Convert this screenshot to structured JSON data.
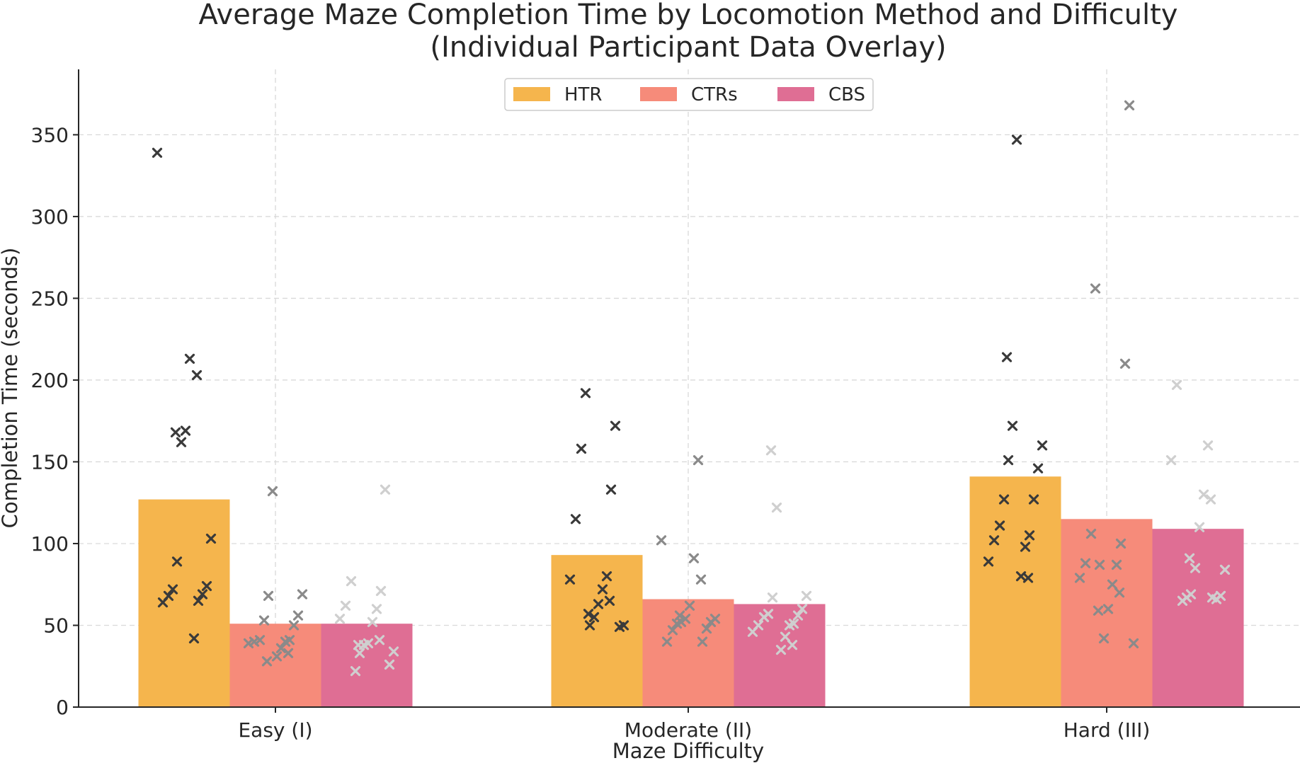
{
  "chart_data": {
    "type": "bar",
    "title": "Average Maze Completion Time by Locomotion Method and Difficulty",
    "subtitle": "(Individual Participant Data Overlay)",
    "xlabel": "Maze Difficulty",
    "ylabel": "Completion Time (seconds)",
    "ylim": [
      0,
      390
    ],
    "yticks": [
      0,
      50,
      100,
      150,
      200,
      250,
      300,
      350
    ],
    "categories": [
      "Easy (I)",
      "Moderate (II)",
      "Hard (III)"
    ],
    "grid": true,
    "legend_position": "top-center",
    "series": [
      {
        "name": "HTR",
        "color": "#F5B54D",
        "values": [
          127,
          93,
          141
        ]
      },
      {
        "name": "CTRs",
        "color": "#F68B7A",
        "values": [
          51,
          66,
          115
        ]
      },
      {
        "name": "CBS",
        "color": "#DF6E94",
        "values": [
          51,
          63,
          109
        ]
      }
    ],
    "individual_points": {
      "marker": "x",
      "colors": [
        "#3a3a3a",
        "#8a8a8a",
        "#cfcfcf"
      ],
      "groups": [
        [
          [
            339,
            213,
            203,
            169,
            168,
            162,
            103,
            89,
            74,
            72,
            69,
            68,
            65,
            64,
            42
          ],
          [
            132,
            69,
            68,
            56,
            53,
            50,
            41,
            41,
            40,
            40,
            39,
            36,
            33,
            31,
            28
          ],
          [
            133,
            77,
            71,
            62,
            60,
            54,
            52,
            41,
            39,
            38,
            38,
            34,
            33,
            26,
            22
          ]
        ],
        [
          [
            192,
            172,
            158,
            133,
            115,
            80,
            78,
            72,
            65,
            63,
            57,
            55,
            50,
            50,
            49
          ],
          [
            151,
            102,
            91,
            78,
            62,
            56,
            54,
            54,
            52,
            52,
            51,
            48,
            47,
            40,
            40
          ],
          [
            157,
            122,
            68,
            67,
            60,
            57,
            56,
            55,
            51,
            50,
            50,
            46,
            43,
            38,
            35
          ]
        ],
        [
          [
            347,
            214,
            172,
            160,
            151,
            146,
            127,
            127,
            111,
            105,
            102,
            98,
            89,
            80,
            79
          ],
          [
            368,
            256,
            210,
            106,
            100,
            88,
            87,
            79,
            75,
            70,
            60,
            59,
            42,
            39,
            87
          ],
          [
            197,
            160,
            151,
            130,
            127,
            110,
            91,
            85,
            84,
            69,
            68,
            67,
            66,
            65,
            67
          ]
        ]
      ]
    }
  }
}
